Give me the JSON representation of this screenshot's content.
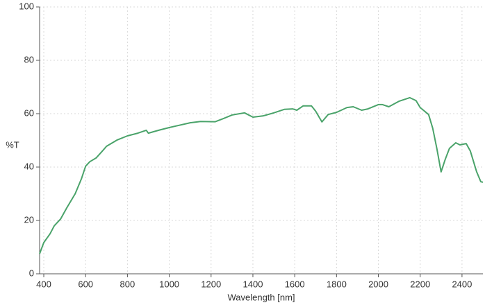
{
  "chart_data": {
    "type": "line",
    "x_label": "Wavelength [nm]",
    "y_label": "%T",
    "xlim": [
      380,
      2500
    ],
    "ylim": [
      0,
      100
    ],
    "xticks": [
      400,
      600,
      800,
      1000,
      1200,
      1400,
      1600,
      1800,
      2000,
      2200,
      2400
    ],
    "yticks": [
      0,
      20,
      40,
      60,
      80,
      100
    ],
    "grid": true,
    "x": [
      380,
      400,
      430,
      450,
      480,
      510,
      550,
      580,
      600,
      620,
      650,
      680,
      700,
      750,
      800,
      850,
      890,
      900,
      950,
      1000,
      1100,
      1150,
      1220,
      1260,
      1300,
      1360,
      1400,
      1450,
      1500,
      1550,
      1590,
      1610,
      1640,
      1680,
      1700,
      1730,
      1760,
      1800,
      1850,
      1880,
      1920,
      1950,
      2000,
      2020,
      2050,
      2100,
      2150,
      2180,
      2200,
      2240,
      2260,
      2280,
      2300,
      2320,
      2340,
      2370,
      2390,
      2420,
      2440,
      2470,
      2490,
      2500
    ],
    "series": [
      {
        "color": "#4aa36a",
        "values": [
          7.5,
          11.7,
          15,
          18,
          20.5,
          24.7,
          30,
          35.6,
          40.3,
          42,
          43.4,
          46,
          47.8,
          50.1,
          51.7,
          52.7,
          53.8,
          52.7,
          53.8,
          54.8,
          56.6,
          57.1,
          57,
          58.2,
          59.5,
          60.3,
          58.7,
          59.2,
          60.3,
          61.6,
          61.8,
          61.3,
          62.9,
          62.9,
          61,
          56.9,
          59.7,
          60.5,
          62.3,
          62.6,
          61.3,
          61.8,
          63.4,
          63.4,
          62.6,
          64.7,
          66,
          64.9,
          62.3,
          59.7,
          54.5,
          46.8,
          38.2,
          42.9,
          47,
          49.1,
          48.3,
          48.8,
          46,
          38.2,
          34.5,
          34.3
        ]
      }
    ]
  }
}
